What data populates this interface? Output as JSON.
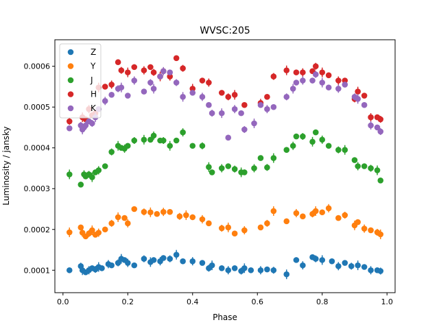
{
  "chart_data": {
    "type": "scatter",
    "title": "WVSC:205",
    "xlabel": "Phase",
    "ylabel": "Luminosity / jansky",
    "xlim": [
      -0.025,
      1.025
    ],
    "ylim": [
      4.5e-05,
      0.000665
    ],
    "xticks": [
      0.0,
      0.2,
      0.4,
      0.6,
      0.8,
      1.0
    ],
    "xtick_labels": [
      "0.0",
      "0.2",
      "0.4",
      "0.6",
      "0.8",
      "1.0"
    ],
    "yticks": [
      0.0001,
      0.0002,
      0.0003,
      0.0004,
      0.0005,
      0.0006
    ],
    "ytick_labels": [
      "0.0001",
      "0.0002",
      "0.0003",
      "0.0004",
      "0.0005",
      "0.0006"
    ],
    "grid": false,
    "legend_position": "top-left",
    "series": [
      {
        "name": "Z",
        "color": "#1f77b4",
        "x": [
          0.02,
          0.055,
          0.06,
          0.07,
          0.08,
          0.09,
          0.1,
          0.11,
          0.12,
          0.14,
          0.15,
          0.17,
          0.18,
          0.19,
          0.2,
          0.22,
          0.25,
          0.27,
          0.28,
          0.3,
          0.31,
          0.33,
          0.35,
          0.37,
          0.4,
          0.43,
          0.45,
          0.46,
          0.49,
          0.51,
          0.53,
          0.55,
          0.56,
          0.58,
          0.61,
          0.63,
          0.65,
          0.69,
          0.72,
          0.74,
          0.77,
          0.78,
          0.8,
          0.83,
          0.85,
          0.87,
          0.89,
          0.91,
          0.93,
          0.95,
          0.97,
          0.98
        ],
        "y": [
          0.0001,
          0.00011,
          0.0001,
          9.5e-05,
          0.0001,
          0.000105,
          0.000102,
          0.000108,
          0.000105,
          0.000115,
          0.000112,
          0.000118,
          0.000128,
          0.000125,
          0.000118,
          0.000112,
          0.000128,
          0.00012,
          0.000125,
          0.000122,
          0.00013,
          0.000128,
          0.000138,
          0.000122,
          0.000122,
          0.000118,
          0.000105,
          0.000112,
          0.000105,
          0.0001,
          0.000105,
          9.8e-05,
          0.000105,
          0.0001,
          0.0001,
          0.000102,
          0.0001,
          9e-05,
          0.000125,
          0.000112,
          0.000132,
          0.000128,
          0.000125,
          0.000122,
          0.00011,
          0.000118,
          0.00011,
          0.000112,
          0.000108,
          0.0001,
          0.0001,
          9.8e-05
        ]
      },
      {
        "name": "Y",
        "color": "#ff7f0e",
        "x": [
          0.02,
          0.055,
          0.06,
          0.07,
          0.08,
          0.09,
          0.1,
          0.11,
          0.13,
          0.15,
          0.17,
          0.19,
          0.2,
          0.22,
          0.25,
          0.27,
          0.29,
          0.31,
          0.33,
          0.36,
          0.38,
          0.4,
          0.43,
          0.45,
          0.49,
          0.51,
          0.53,
          0.56,
          0.61,
          0.63,
          0.65,
          0.69,
          0.72,
          0.74,
          0.77,
          0.78,
          0.8,
          0.82,
          0.85,
          0.87,
          0.9,
          0.91,
          0.93,
          0.95,
          0.97,
          0.98
        ],
        "y": [
          0.000193,
          0.000205,
          0.000192,
          0.000183,
          0.00019,
          0.000198,
          0.000187,
          0.000192,
          0.0002,
          0.000215,
          0.00023,
          0.000228,
          0.000215,
          0.00025,
          0.000243,
          0.000242,
          0.000238,
          0.000243,
          0.000243,
          0.000232,
          0.000235,
          0.00023,
          0.000225,
          0.000215,
          0.000203,
          0.000205,
          0.00019,
          0.000198,
          0.000205,
          0.000215,
          0.000245,
          0.00022,
          0.00024,
          0.000232,
          0.000238,
          0.000245,
          0.000242,
          0.000252,
          0.000228,
          0.000235,
          0.00021,
          0.000218,
          0.000202,
          0.000198,
          0.000193,
          0.000188
        ]
      },
      {
        "name": "J",
        "color": "#2ca02c",
        "x": [
          0.02,
          0.055,
          0.065,
          0.07,
          0.08,
          0.09,
          0.1,
          0.11,
          0.13,
          0.15,
          0.17,
          0.18,
          0.19,
          0.2,
          0.22,
          0.25,
          0.27,
          0.28,
          0.3,
          0.31,
          0.33,
          0.35,
          0.37,
          0.4,
          0.43,
          0.45,
          0.46,
          0.49,
          0.51,
          0.53,
          0.55,
          0.56,
          0.59,
          0.61,
          0.63,
          0.65,
          0.69,
          0.71,
          0.72,
          0.74,
          0.77,
          0.78,
          0.8,
          0.82,
          0.85,
          0.87,
          0.9,
          0.91,
          0.93,
          0.95,
          0.97,
          0.98
        ],
        "y": [
          0.000335,
          0.00031,
          0.000335,
          0.00033,
          0.000335,
          0.000328,
          0.00034,
          0.000345,
          0.000355,
          0.00039,
          0.000405,
          0.0004,
          0.000398,
          0.000405,
          0.000418,
          0.00042,
          0.00042,
          0.00043,
          0.000418,
          0.000418,
          0.000405,
          0.000418,
          0.000438,
          0.000405,
          0.000405,
          0.000353,
          0.00034,
          0.00035,
          0.000355,
          0.000348,
          0.00034,
          0.00034,
          0.00035,
          0.000375,
          0.000352,
          0.000375,
          0.000395,
          0.000405,
          0.000428,
          0.000428,
          0.000415,
          0.000438,
          0.00042,
          0.000405,
          0.000395,
          0.000395,
          0.00037,
          0.000355,
          0.000355,
          0.00035,
          0.000345,
          0.00032
        ]
      },
      {
        "name": "H",
        "color": "#d62728",
        "x": [
          0.02,
          0.06,
          0.07,
          0.08,
          0.09,
          0.1,
          0.11,
          0.13,
          0.15,
          0.17,
          0.18,
          0.2,
          0.22,
          0.25,
          0.27,
          0.28,
          0.3,
          0.31,
          0.33,
          0.35,
          0.37,
          0.4,
          0.43,
          0.45,
          0.49,
          0.51,
          0.53,
          0.56,
          0.61,
          0.63,
          0.65,
          0.69,
          0.72,
          0.74,
          0.77,
          0.78,
          0.8,
          0.82,
          0.85,
          0.87,
          0.9,
          0.91,
          0.93,
          0.95,
          0.97,
          0.98
        ],
        "y": [
          0.000465,
          0.000475,
          0.00047,
          0.000495,
          0.00048,
          0.000485,
          0.000548,
          0.00055,
          0.000555,
          0.00061,
          0.00059,
          0.000585,
          0.000598,
          0.00059,
          0.000598,
          0.000585,
          0.000575,
          0.000588,
          0.000575,
          0.00062,
          0.000595,
          0.000545,
          0.000565,
          0.00056,
          0.000535,
          0.000525,
          0.00053,
          0.000505,
          0.00051,
          0.000525,
          0.000575,
          0.00059,
          0.000585,
          0.000585,
          0.000588,
          0.0006,
          0.000585,
          0.000578,
          0.000565,
          0.000565,
          0.00052,
          0.000538,
          0.000528,
          0.000475,
          0.000475,
          0.00047
        ]
      },
      {
        "name": "K",
        "color": "#9467bd",
        "x": [
          0.02,
          0.055,
          0.06,
          0.065,
          0.07,
          0.08,
          0.09,
          0.1,
          0.11,
          0.13,
          0.15,
          0.17,
          0.18,
          0.2,
          0.22,
          0.25,
          0.27,
          0.28,
          0.3,
          0.31,
          0.33,
          0.35,
          0.37,
          0.4,
          0.43,
          0.45,
          0.46,
          0.49,
          0.51,
          0.53,
          0.55,
          0.56,
          0.59,
          0.61,
          0.63,
          0.65,
          0.69,
          0.71,
          0.72,
          0.74,
          0.77,
          0.78,
          0.8,
          0.82,
          0.85,
          0.87,
          0.9,
          0.91,
          0.93,
          0.95,
          0.97,
          0.98
        ],
        "y": [
          0.000448,
          0.000455,
          0.000445,
          0.00045,
          0.000455,
          0.000465,
          0.00046,
          0.000475,
          0.000495,
          0.000515,
          0.00053,
          0.000545,
          0.000548,
          0.000528,
          0.000565,
          0.000538,
          0.00056,
          0.000545,
          0.000575,
          0.000588,
          0.000585,
          0.00056,
          0.000525,
          0.000535,
          0.000525,
          0.000505,
          0.000485,
          0.000485,
          0.000425,
          0.000495,
          0.000485,
          0.000445,
          0.00046,
          0.000505,
          0.000495,
          0.0005,
          0.000525,
          0.000545,
          0.00056,
          0.000565,
          0.000565,
          0.00058,
          0.00056,
          0.000548,
          0.000545,
          0.000555,
          0.000525,
          0.00052,
          0.000505,
          0.000455,
          0.00045,
          0.00044
        ]
      }
    ]
  }
}
